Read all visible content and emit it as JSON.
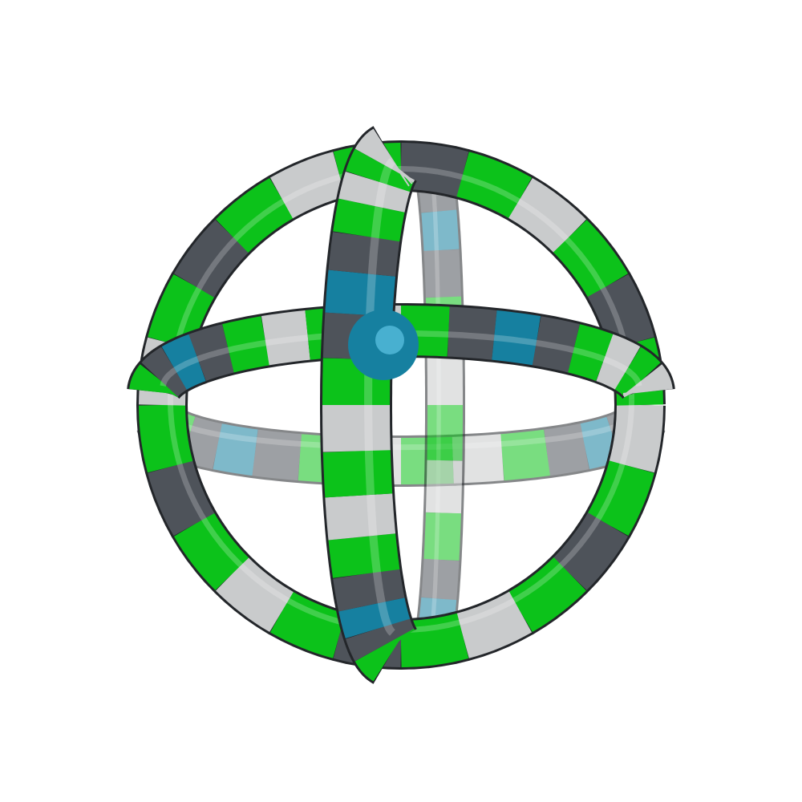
{
  "molecule_render": {
    "background": "#ffffff",
    "palette": {
      "green": "#0cc21a",
      "green_dark": "#079c12",
      "dark_gray": "#4e535a",
      "light_gray": "#c9cbcc",
      "teal": "#1680a0",
      "edge": "#23262a"
    },
    "rings": [
      {
        "id": "outer-ring",
        "pattern": [
          "light_gray",
          "green",
          "dark_gray",
          "green",
          "light_gray",
          "green",
          "dark_gray",
          "green"
        ],
        "segments": 24
      },
      {
        "id": "equator-ring",
        "pattern": [
          "green",
          "dark_gray",
          "teal",
          "dark_gray",
          "green",
          "light_gray",
          "green",
          "light_gray"
        ],
        "segments": 24
      },
      {
        "id": "vertical-ring",
        "pattern": [
          "green",
          "dark_gray",
          "teal",
          "dark_gray",
          "green",
          "light_gray",
          "green",
          "light_gray"
        ],
        "segments": 24
      }
    ]
  }
}
